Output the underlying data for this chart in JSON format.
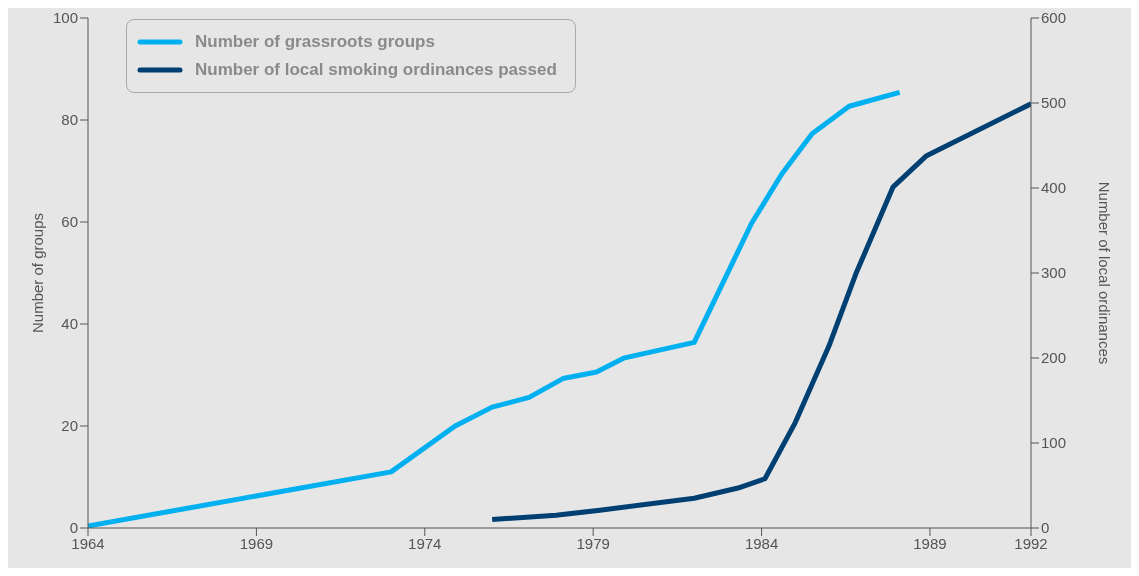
{
  "chart_data": {
    "type": "line",
    "xlabel": null,
    "ylabel": "Number of groups",
    "y2label": "Number of local ordinances",
    "xlim": [
      1964,
      1992
    ],
    "xticks": [
      1964,
      1969,
      1974,
      1979,
      1984,
      1989,
      1992
    ],
    "ylim": [
      0,
      100
    ],
    "yticks": [
      0,
      20,
      40,
      60,
      80,
      100
    ],
    "y2lim": [
      0,
      600
    ],
    "y2ticks": [
      0,
      100,
      200,
      300,
      400,
      500,
      600
    ],
    "grid": false,
    "legend": "top left",
    "marker": "none",
    "line_style": "solid",
    "series": [
      {
        "name": "Number of grassroots groups",
        "color": "#00b0f0",
        "x": [
          1964,
          1973,
          1974.9,
          1976,
          1977.1,
          1978.1,
          1979.1,
          1979.9,
          1982,
          1983.7,
          1984.6,
          1985.5,
          1986.6,
          1988.1
        ],
        "values": [
          0.4,
          11,
          20,
          23.7,
          25.6,
          29.3,
          30.6,
          33.3,
          36.4,
          59.7,
          69.4,
          77.3,
          82.7,
          85.4
        ]
      },
      {
        "name": "Number of local smoking ordinances passed",
        "color": "#003f72",
        "axis": "y2",
        "x": [
          1976,
          1977.9,
          1979.2,
          1982,
          1983.3,
          1984.1,
          1985,
          1986,
          1986.8,
          1987.9,
          1988.9,
          1992
        ],
        "values": [
          10,
          15,
          21,
          35,
          47,
          58,
          124,
          214,
          299,
          401,
          438,
          499
        ]
      }
    ]
  }
}
